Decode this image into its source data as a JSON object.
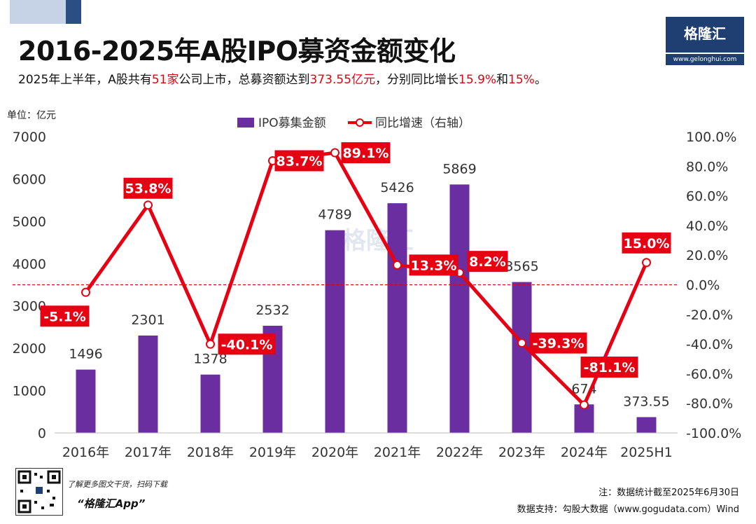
{
  "header": {
    "title": "2016-2025年A股IPO募资金额变化",
    "subtitle_parts": [
      "2025年上半年，A股共有",
      "51家",
      "公司上市，总募资额达到",
      "373.55亿元",
      "，分别同比增长",
      "15.9%",
      "和",
      "15%",
      "。"
    ]
  },
  "brand": {
    "logo": "格隆汇",
    "url": "www.gelonghui.com",
    "qr_tip": "了解更多图文干货，扫码下载",
    "app_name": "“格隆汇App”"
  },
  "footer": {
    "note": "注：数据统计截至2025年6月30日",
    "source": "数据支持：勾股大数据（www.gogudata.com）Wind"
  },
  "colors": {
    "bar": "#6a2ea0",
    "line": "#e60012",
    "label_bg": "#e60012",
    "logo_bg": "#1f3f73"
  },
  "chart_data": {
    "type": "bar",
    "unit_label": "单位：亿元",
    "categories": [
      "2016年",
      "2017年",
      "2018年",
      "2019年",
      "2020年",
      "2021年",
      "2022年",
      "2023年",
      "2024年",
      "2025H1"
    ],
    "series": [
      {
        "name": "IPO募集金额",
        "type": "bar",
        "axis": "left",
        "values": [
          1496,
          2301,
          1378,
          2532,
          4789,
          5426,
          5869,
          3565,
          674,
          373.55
        ],
        "labels": [
          "1496",
          "2301",
          "1378",
          "2532",
          "4789",
          "5426",
          "5869",
          "3565",
          "674",
          "373.55"
        ]
      },
      {
        "name": "同比增速（右轴）",
        "type": "line",
        "axis": "right",
        "values": [
          -5.1,
          53.8,
          -40.1,
          83.7,
          89.1,
          13.3,
          8.2,
          -39.3,
          -81.1,
          15.0
        ],
        "labels": [
          "-5.1%",
          "53.8%",
          "-40.1%",
          "83.7%",
          "89.1%",
          "13.3%",
          "8.2%",
          "-39.3%",
          "-81.1%",
          "15.0%"
        ]
      }
    ],
    "y_left": {
      "min": 0,
      "max": 7000,
      "ticks": [
        "0",
        "1000",
        "2000",
        "3000",
        "4000",
        "5000",
        "6000",
        "7000"
      ]
    },
    "y_right": {
      "min": -100,
      "max": 100,
      "ticks": [
        "-100.0%",
        "-80.0%",
        "-60.0%",
        "-40.0%",
        "-20.0%",
        "0.0%",
        "20.0%",
        "40.0%",
        "60.0%",
        "80.0%",
        "100.0%"
      ]
    },
    "zero_reference_line": "dashed red at 0.0% on right axis",
    "legend_position": "top-center",
    "grid": false
  }
}
